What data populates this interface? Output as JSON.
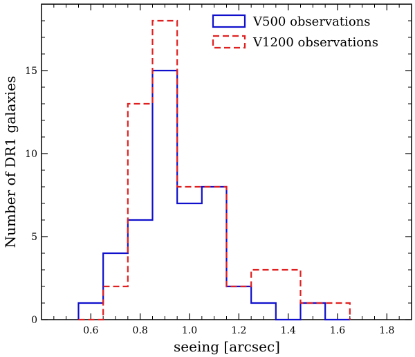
{
  "chart_data": {
    "type": "histogram",
    "xlabel": "seeing [arcsec]",
    "ylabel": "Number of DR1 galaxies",
    "xlim": [
      0.4,
      1.9
    ],
    "ylim": [
      0,
      19
    ],
    "xticks": [
      "0.6",
      "0.8",
      "1.0",
      "1.2",
      "1.4",
      "1.6",
      "1.8"
    ],
    "xtick_values": [
      0.6,
      0.8,
      1.0,
      1.2,
      1.4,
      1.6,
      1.8
    ],
    "yticks": [
      "0",
      "5",
      "10",
      "15"
    ],
    "ytick_values": [
      0,
      5,
      10,
      15
    ],
    "bin_edges": [
      0.55,
      0.65,
      0.75,
      0.85,
      0.95,
      1.05,
      1.15,
      1.25,
      1.35,
      1.45,
      1.55,
      1.65
    ],
    "series": [
      {
        "name": "V500 observations",
        "color": "#1010cc",
        "dashed": false,
        "counts": [
          1,
          4,
          6,
          15,
          7,
          8,
          2,
          1,
          0,
          1,
          0
        ]
      },
      {
        "name": "V1200 observations",
        "color": "#e02020",
        "dashed": true,
        "counts": [
          0,
          2,
          13,
          18,
          8,
          8,
          2,
          3,
          3,
          1,
          1
        ]
      }
    ],
    "legend_position": "top-right"
  }
}
